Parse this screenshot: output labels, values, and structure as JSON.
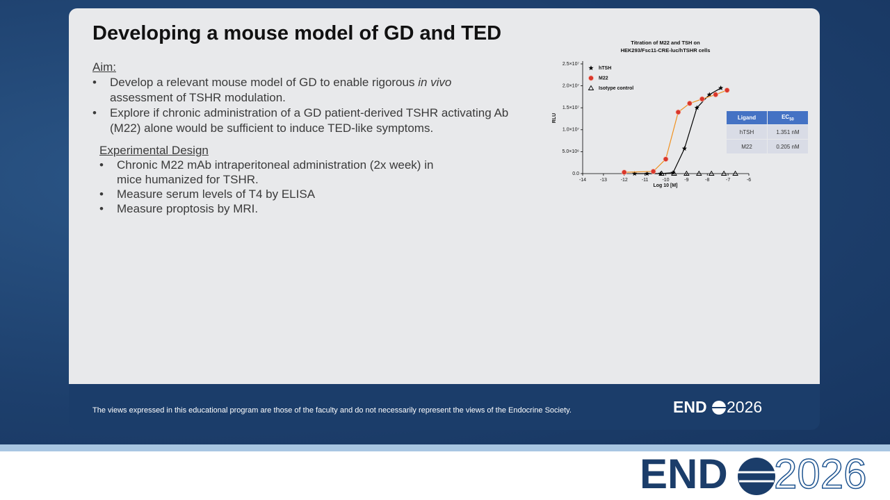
{
  "slide": {
    "title": "Developing a mouse model of GD and TED",
    "aim": {
      "heading": "Aim:",
      "bullets": [
        [
          "Develop a relevant mouse model of GD to enable rigorous ",
          "in vivo",
          " assessment of TSHR modulation."
        ],
        [
          "Explore if chronic administration of a GD patient-derived TSHR activating Ab (M22) alone would be sufficient to induce TED-like symptoms."
        ]
      ]
    },
    "design": {
      "heading": "Experimental Design",
      "bullets": [
        "Chronic M22 mAb intraperitoneal administration (2x week) in mice humanized for TSHR.",
        "Measure serum levels of T4 by ELISA",
        "Measure proptosis by MRI."
      ]
    },
    "footer": "The views expressed in this educational program are those of the faculty and do not necessarily represent the views of the Endocrine Society.",
    "logo": {
      "left": "END",
      "right": "2026"
    }
  },
  "chart_data": {
    "type": "scatter",
    "title": [
      "Titration of M22 and TSH on",
      "HEK293/Fsc11-CRE-luc/hTSHR cells"
    ],
    "x_label": "Log 10 [M]",
    "y_label": "RLU",
    "xlim": [
      -14,
      -6
    ],
    "xticks": [
      -14,
      -13,
      -12,
      -11,
      -10,
      -9,
      -8,
      -7,
      -6
    ],
    "ylim": [
      0,
      25000000
    ],
    "yticks": [
      {
        "value": 0,
        "label": "0.0"
      },
      {
        "value": 5000000,
        "label": "5.0×10⁶"
      },
      {
        "value": 10000000,
        "label": "1.0×10⁷"
      },
      {
        "value": 15000000,
        "label": "1.5×10⁷"
      },
      {
        "value": 20000000,
        "label": "2.0×10⁷"
      },
      {
        "value": 25000000,
        "label": "2.5×10⁷"
      }
    ],
    "series": [
      {
        "name": "hTSH",
        "color": "#000000",
        "marker": "star",
        "curve_color": "#000000",
        "x": [
          -11.5,
          -10.9,
          -10.25,
          -9.65,
          -9.1,
          -8.5,
          -7.9,
          -7.35
        ],
        "values": [
          0,
          0,
          0,
          200000,
          5700000,
          15000000,
          18000000,
          19500000
        ]
      },
      {
        "name": "M22",
        "color": "#d9372b",
        "marker": "circle",
        "curve_color": "#f0901e",
        "x": [
          -12,
          -10.6,
          -10,
          -9.4,
          -8.85,
          -8.25,
          -7.6,
          -7.05
        ],
        "values": [
          300000,
          500000,
          3300000,
          14000000,
          16000000,
          17000000,
          18000000,
          19000000
        ]
      },
      {
        "name": "Isotype control",
        "color": "#000000",
        "marker": "triangle",
        "x": [
          -10.2,
          -9.6,
          -9,
          -8.4,
          -7.8,
          -7.2,
          -6.65
        ],
        "values": [
          0,
          0,
          0,
          0,
          0,
          0,
          0
        ]
      }
    ]
  },
  "ec50_table": {
    "header": [
      "Ligand",
      "EC",
      "50"
    ],
    "rows": [
      [
        "hTSH",
        "1.351 nM"
      ],
      [
        "M22",
        "0.205 nM"
      ]
    ]
  }
}
